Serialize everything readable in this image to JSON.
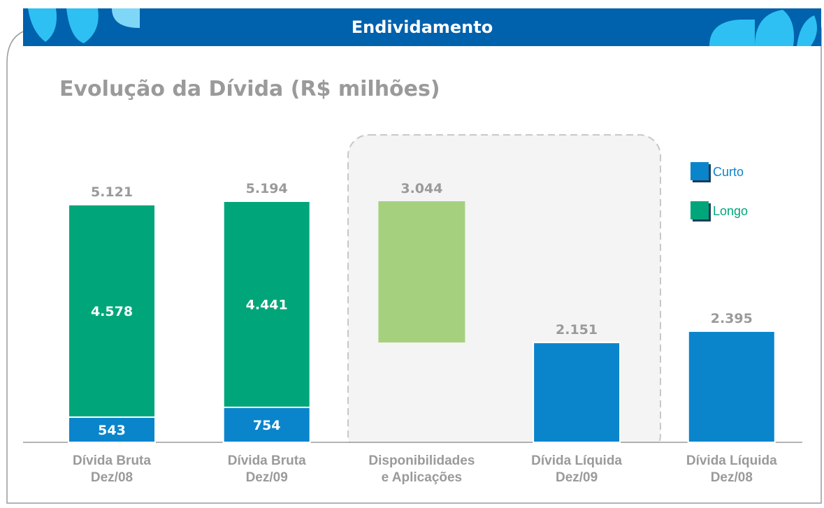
{
  "header": {
    "title": "Endividamento"
  },
  "chart_data": {
    "type": "bar",
    "stacked": true,
    "title": "Evolução da Dívida (R$ milhões)",
    "categories": [
      "Dívida Bruta\nDez/08",
      "Dívida Bruta\nDez/09",
      "Disponibilidades\ne Aplicações",
      "Dívida Líquida\nDez/09",
      "Dívida Líquida\nDez/08"
    ],
    "series": [
      {
        "name": "Curto",
        "color": "#0a85cc",
        "values": [
          543,
          754,
          null,
          2151,
          2395
        ],
        "value_labels": [
          "543",
          "754",
          null,
          "2.151",
          "2.395"
        ]
      },
      {
        "name": "Longo",
        "color": "#00a67a",
        "values": [
          4578,
          4441,
          null,
          null,
          null
        ],
        "value_labels": [
          "4.578",
          "4.441",
          null,
          null,
          null
        ]
      }
    ],
    "totals": [
      5121,
      5194,
      null,
      null,
      null
    ],
    "total_labels": [
      "5.121",
      "5.194",
      null,
      null,
      null
    ],
    "waterfall": {
      "category": 2,
      "value": 3044,
      "value_label": "3.044",
      "color": "#a5d17f"
    },
    "legend": "upper right"
  }
}
